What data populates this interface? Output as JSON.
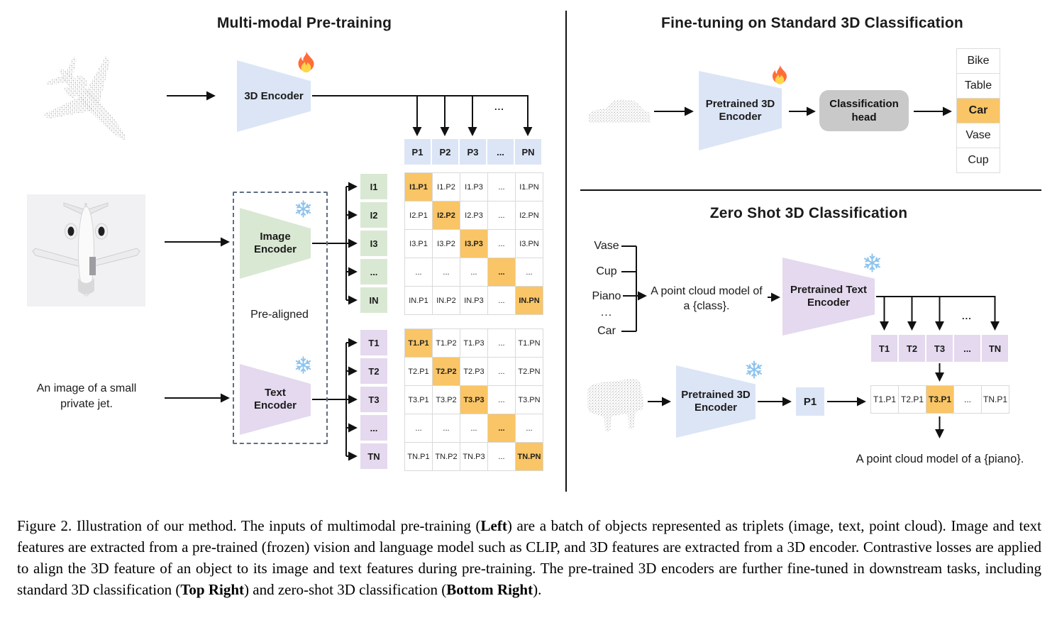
{
  "colors": {
    "blue": "#dbe5f6",
    "green": "#d9e8d3",
    "purple": "#e4d9ee",
    "orange": "#f9c566",
    "gray": "#c9c9c9"
  },
  "pretraining": {
    "title": "Multi-modal Pre-training",
    "encoder_3d": [
      "3D Encoder"
    ],
    "image_encoder": [
      "Image",
      "Encoder"
    ],
    "text_encoder": [
      "Text",
      "Encoder"
    ],
    "pre_aligned": "Pre-aligned",
    "input_caption": [
      "An image of a small",
      "private jet."
    ],
    "p_row": [
      "P1",
      "P2",
      "P3",
      "...",
      "PN"
    ],
    "p_dots": "...",
    "image_matrix": {
      "headers": [
        "I1",
        "I2",
        "I3",
        "...",
        "IN"
      ],
      "cells": [
        [
          "I1.P1",
          "I1.P2",
          "I1.P3",
          "...",
          "I1.PN"
        ],
        [
          "I2.P1",
          "I2.P2",
          "I2.P3",
          "...",
          "I2.PN"
        ],
        [
          "I3.P1",
          "I3.P2",
          "I3.P3",
          "...",
          "I3.PN"
        ],
        [
          "...",
          "...",
          "...",
          "...",
          "..."
        ],
        [
          "IN.P1",
          "IN.P2",
          "IN.P3",
          "...",
          "IN.PN"
        ]
      ]
    },
    "text_matrix": {
      "headers": [
        "T1",
        "T2",
        "T3",
        "...",
        "TN"
      ],
      "cells": [
        [
          "T1.P1",
          "T1.P2",
          "T1.P3",
          "...",
          "T1.PN"
        ],
        [
          "T2.P1",
          "T2.P2",
          "T2.P3",
          "...",
          "T2.PN"
        ],
        [
          "T3.P1",
          "T3.P2",
          "T3.P3",
          "...",
          "T3.PN"
        ],
        [
          "...",
          "...",
          "...",
          "...",
          "..."
        ],
        [
          "TN.P1",
          "TN.P2",
          "TN.P3",
          "...",
          "TN.PN"
        ]
      ]
    }
  },
  "finetune": {
    "title": "Fine-tuning on Standard 3D Classification",
    "encoder": [
      "Pretrained 3D",
      "Encoder"
    ],
    "head": [
      "Classification",
      "head"
    ],
    "classes": [
      "Bike",
      "Table",
      "Car",
      "Vase",
      "Cup"
    ],
    "highlight_index": 2
  },
  "zeroshot": {
    "title": "Zero Shot 3D Classification",
    "class_names": [
      "Vase",
      "Cup",
      "Piano",
      "...",
      "Car"
    ],
    "prompt": [
      "A point cloud model of",
      "a {class}."
    ],
    "text_encoder": [
      "Pretrained Text",
      "Encoder"
    ],
    "t_row": [
      "T1",
      "T2",
      "T3",
      "...",
      "TN"
    ],
    "t_dots": "...",
    "encoder_3d": [
      "Pretrained 3D",
      "Encoder"
    ],
    "p1": "P1",
    "sim_row": [
      "T1.P1",
      "T2.P1",
      "T3.P1",
      "...",
      "TN.P1"
    ],
    "sim_highlight_index": 2,
    "result_text": "A point cloud model of a {piano}."
  },
  "caption_segments": [
    {
      "t": "Figure 2. Illustration of our method. The inputs of multimodal pre-training (",
      "b": false
    },
    {
      "t": "Left",
      "b": true
    },
    {
      "t": ") are a batch of objects represented as triplets (image, text, point cloud).  Image and text features are extracted from a pre-trained (frozen) vision and language model such as CLIP, and 3D features are extracted from a 3D encoder.  Contrastive losses are applied to align the 3D feature of an object to its image and text features during pre-training.  The pre-trained 3D encoders are further fine-tuned in downstream tasks, including standard 3D classification (",
      "b": false
    },
    {
      "t": "Top Right",
      "b": true
    },
    {
      "t": ") and zero-shot 3D classification (",
      "b": false
    },
    {
      "t": "Bottom Right",
      "b": true
    },
    {
      "t": ").",
      "b": false
    }
  ]
}
